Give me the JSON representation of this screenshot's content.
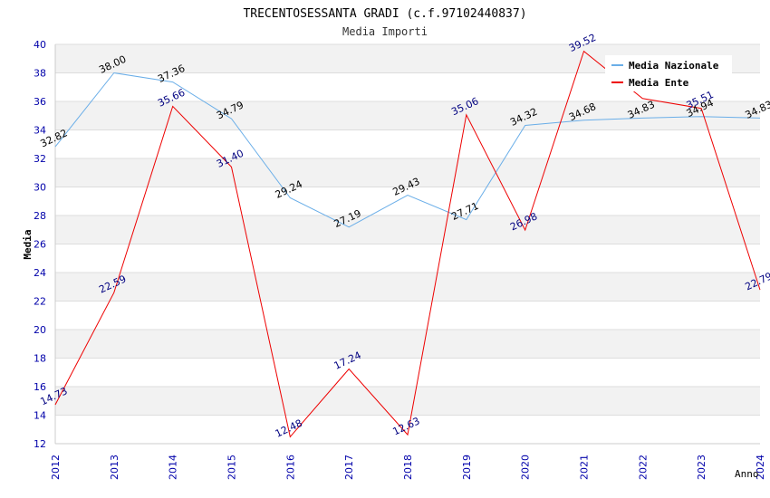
{
  "chart_data": {
    "type": "line",
    "title": "TRECENTOSESSANTA GRADI (c.f.97102440837)",
    "subtitle": "Media Importi",
    "xlabel": "Anno",
    "ylabel": "Media",
    "ylim": [
      12,
      40
    ],
    "yticks": [
      "12",
      "14",
      "16",
      "18",
      "20",
      "22",
      "24",
      "26",
      "28",
      "30",
      "32",
      "34",
      "36",
      "38",
      "40"
    ],
    "categories": [
      "2012",
      "2013",
      "2014",
      "2015",
      "2016",
      "2017",
      "2018",
      "2019",
      "2020",
      "2021",
      "2022",
      "2023",
      "2024"
    ],
    "grid": true,
    "legend_position": "top-right",
    "series": [
      {
        "name": "Media Nazionale",
        "color": "#6aaee8",
        "label_color": "#000000",
        "values": [
          32.82,
          38.0,
          37.36,
          34.79,
          29.24,
          27.19,
          29.43,
          27.71,
          34.32,
          34.68,
          34.83,
          34.94,
          34.83
        ],
        "labels": [
          "32.82",
          "38.00",
          "37.36",
          "34.79",
          "29.24",
          "27.19",
          "29.43",
          "27.71",
          "34.32",
          "34.68",
          "34.83",
          "34.94",
          "34.83"
        ]
      },
      {
        "name": "Media Ente",
        "color": "#ee0000",
        "label_color": "#000080",
        "values": [
          14.73,
          22.59,
          35.66,
          31.4,
          12.48,
          17.24,
          12.63,
          35.06,
          26.98,
          39.52,
          36.2,
          35.51,
          22.79
        ],
        "labels": [
          "14.73",
          "22.59",
          "35.66",
          "31.40",
          "12.48",
          "17.24",
          "12.63",
          "35.06",
          "26.98",
          "39.52",
          "",
          "35.51",
          "22.79"
        ]
      }
    ]
  }
}
